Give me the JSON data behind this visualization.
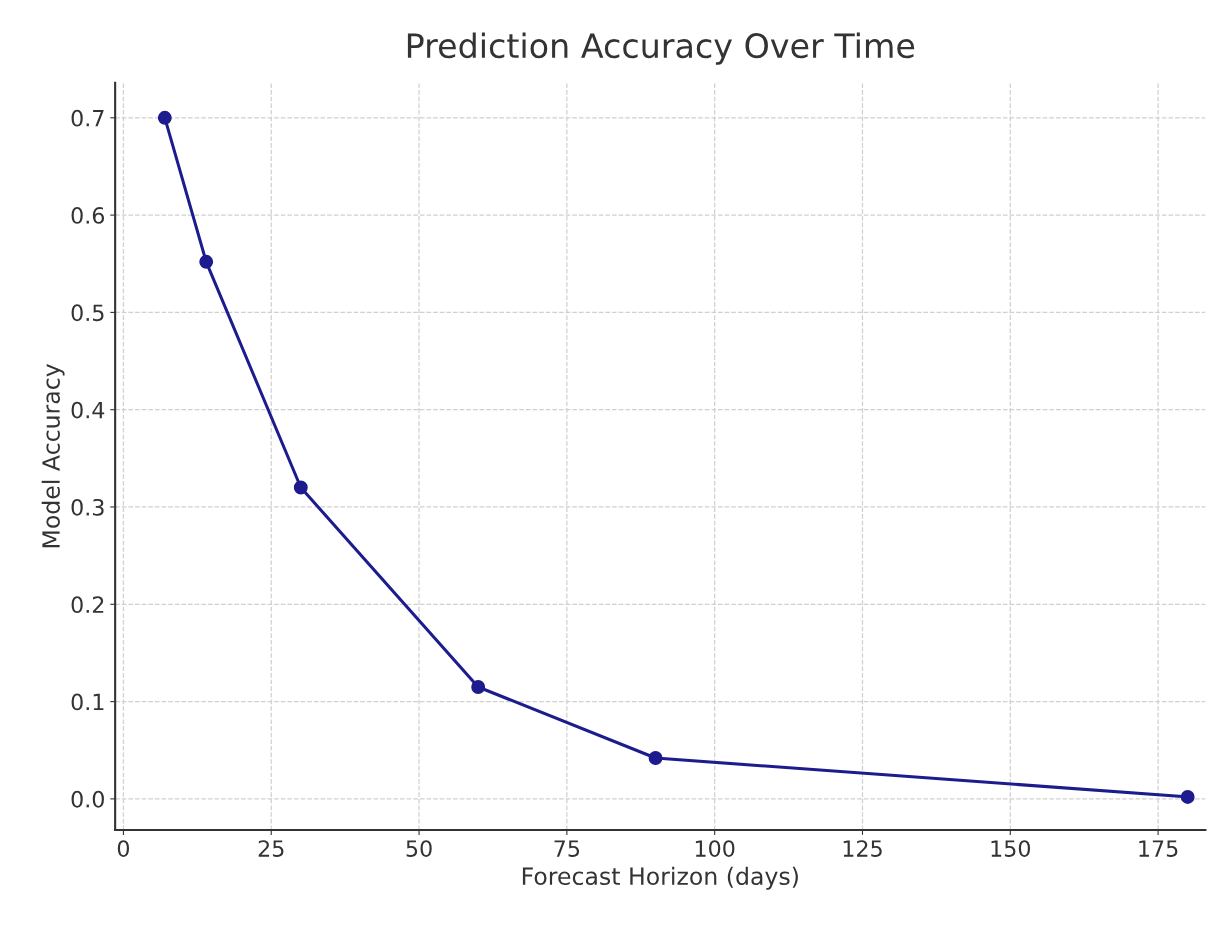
{
  "chart_data": {
    "type": "line",
    "title": "Prediction Accuracy Over Time",
    "xlabel": "Forecast Horizon (days)",
    "ylabel": "Model Accuracy",
    "x": [
      7,
      14,
      30,
      60,
      90,
      180
    ],
    "series": [
      {
        "color": "#1c1c8f",
        "values": [
          0.7,
          0.552,
          0.32,
          0.115,
          0.042,
          0.002
        ]
      }
    ],
    "xlim": [
      -1.4,
      183
    ],
    "xticks": [
      0,
      25,
      50,
      75,
      100,
      125,
      150,
      175
    ],
    "ylim": [
      -0.032,
      0.736
    ],
    "yticks": [
      {
        "value": 0,
        "label": "0.0"
      },
      0.1,
      0.2,
      0.3,
      0.4,
      0.5,
      0.6,
      0.7
    ],
    "grid": true,
    "marker": "circle",
    "line_style": "solid",
    "legend": false
  }
}
